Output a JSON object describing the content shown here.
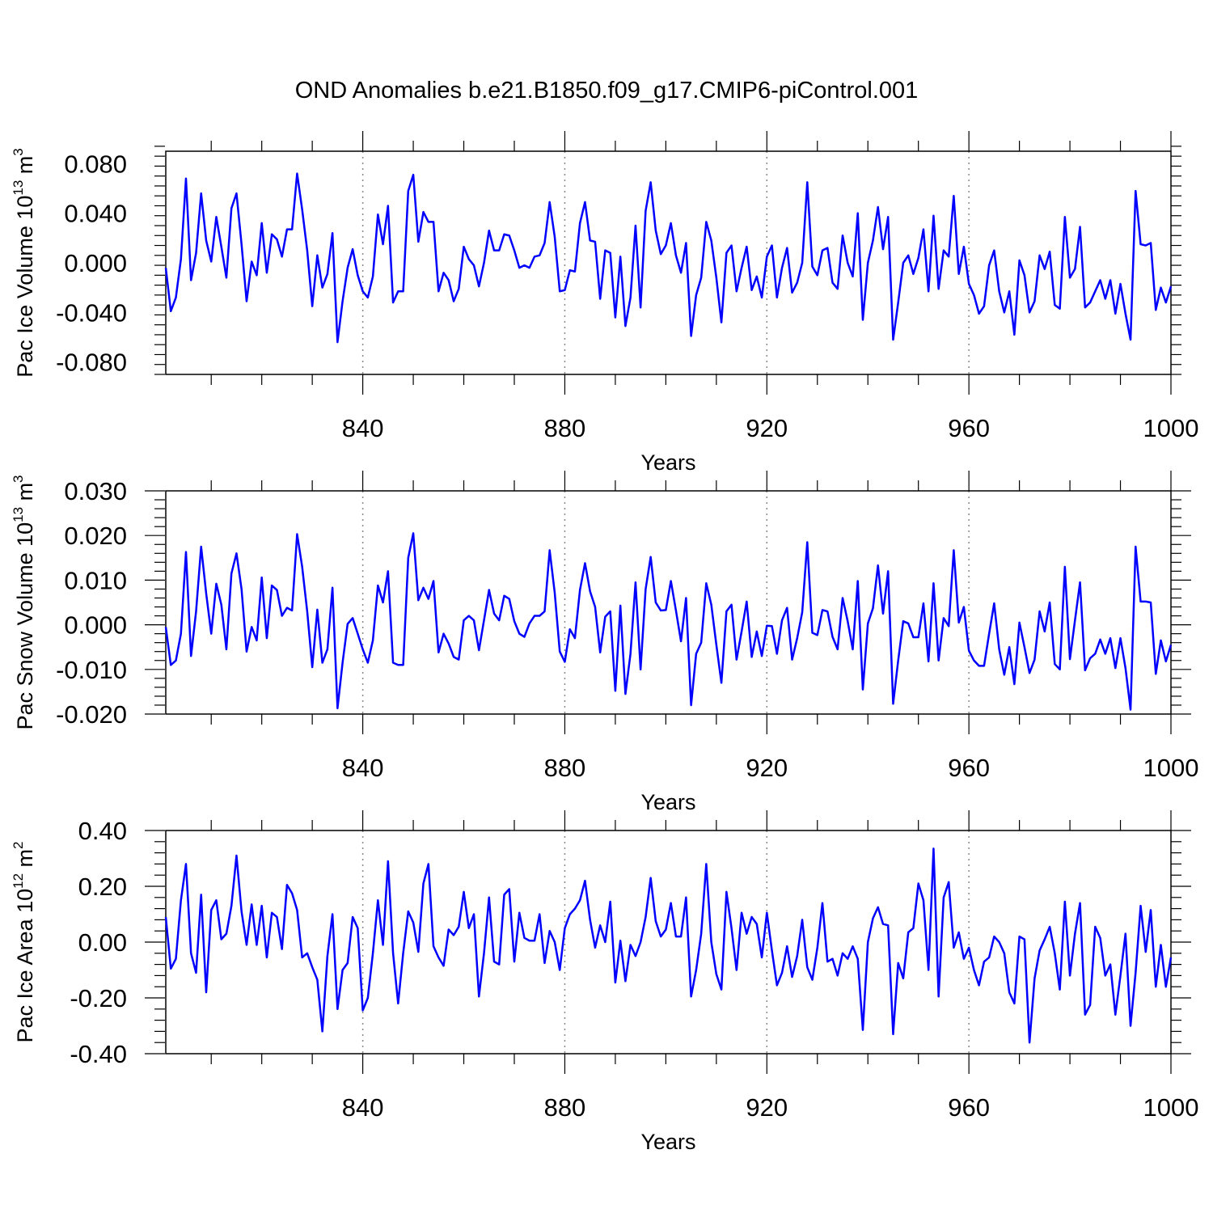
{
  "title": "OND Anomalies b.e21.B1850.f09_g17.CMIP6-piControl.001",
  "colors": {
    "series": "#0000ff",
    "axis": "#000000",
    "grid": "#888888"
  },
  "chart_data": [
    {
      "type": "line",
      "name": "pac-ice-volume",
      "title": "",
      "xlabel": "Years",
      "ylabel": {
        "prefix": "Pac Ice Volume 10",
        "exp": "13",
        "unit": " m",
        "unit_exp": "3"
      },
      "xlim": [
        801,
        1000
      ],
      "ylim": [
        -0.09,
        0.09
      ],
      "xticks": [
        840,
        880,
        920,
        960,
        1000
      ],
      "xtick_labels": [
        "840",
        "880",
        "920",
        "960",
        "1000"
      ],
      "yticks": [
        -0.08,
        -0.04,
        0.0,
        0.04,
        0.08
      ],
      "ytick_labels": [
        "-0.080",
        "-0.040",
        "0.000",
        "0.040",
        "0.080"
      ],
      "grid_x": [
        840,
        880,
        920,
        960
      ],
      "x_start": 801,
      "values": [
        -0.004,
        -0.039,
        -0.028,
        0.003,
        0.068,
        -0.014,
        0.008,
        0.056,
        0.018,
        0.001,
        0.037,
        0.013,
        -0.012,
        0.044,
        0.056,
        0.015,
        -0.031,
        0.001,
        -0.01,
        0.032,
        -0.008,
        0.023,
        0.019,
        0.005,
        0.027,
        0.027,
        0.072,
        0.043,
        0.01,
        -0.035,
        0.006,
        -0.02,
        -0.009,
        0.024,
        -0.064,
        -0.031,
        -0.004,
        0.011,
        -0.01,
        -0.023,
        -0.028,
        -0.011,
        0.039,
        0.015,
        0.046,
        -0.032,
        -0.023,
        -0.023,
        0.058,
        0.071,
        0.017,
        0.041,
        0.033,
        0.033,
        -0.023,
        -0.008,
        -0.014,
        -0.031,
        -0.021,
        0.013,
        0.003,
        -0.002,
        -0.019,
        0.0,
        0.026,
        0.01,
        0.01,
        0.023,
        0.022,
        0.01,
        -0.004,
        -0.002,
        -0.004,
        0.005,
        0.006,
        0.016,
        0.049,
        0.021,
        -0.023,
        -0.022,
        -0.006,
        -0.007,
        0.032,
        0.049,
        0.018,
        0.017,
        -0.029,
        0.01,
        0.008,
        -0.044,
        0.005,
        -0.051,
        -0.028,
        0.03,
        -0.036,
        0.042,
        0.065,
        0.026,
        0.007,
        0.014,
        0.032,
        0.006,
        -0.008,
        0.016,
        -0.059,
        -0.026,
        -0.012,
        0.033,
        0.018,
        -0.012,
        -0.048,
        0.008,
        0.014,
        -0.023,
        -0.004,
        0.013,
        -0.022,
        -0.011,
        -0.028,
        0.005,
        0.014,
        -0.028,
        -0.004,
        0.012,
        -0.024,
        -0.016,
        0.0,
        0.065,
        -0.003,
        -0.01,
        0.01,
        0.012,
        -0.016,
        -0.021,
        0.022,
        0.0,
        -0.011,
        0.04,
        -0.046,
        0.0,
        0.018,
        0.045,
        0.011,
        0.037,
        -0.062,
        -0.032,
        0.0,
        0.006,
        -0.009,
        0.004,
        0.027,
        -0.023,
        0.038,
        -0.021,
        0.01,
        0.005,
        0.054,
        -0.009,
        0.013,
        -0.017,
        -0.026,
        -0.041,
        -0.035,
        -0.002,
        0.01,
        -0.023,
        -0.04,
        -0.023,
        -0.058,
        0.002,
        -0.01,
        -0.04,
        -0.031,
        0.006,
        -0.005,
        0.009,
        -0.034,
        -0.037,
        0.037,
        -0.012,
        -0.005,
        0.029,
        -0.036,
        -0.032,
        -0.023,
        -0.014,
        -0.029,
        -0.014,
        -0.041,
        -0.017,
        -0.041,
        -0.062,
        0.058,
        0.015,
        0.014,
        0.016,
        -0.038,
        -0.02,
        -0.032,
        -0.019
      ]
    },
    {
      "type": "line",
      "name": "pac-snow-volume",
      "title": "",
      "xlabel": "Years",
      "ylabel": {
        "prefix": "Pac Snow Volume 10",
        "exp": "13",
        "unit": " m",
        "unit_exp": "3"
      },
      "xlim": [
        801,
        1000
      ],
      "ylim": [
        -0.02,
        0.03
      ],
      "xticks": [
        840,
        880,
        920,
        960,
        1000
      ],
      "xtick_labels": [
        "840",
        "880",
        "920",
        "960",
        "1000"
      ],
      "yticks": [
        -0.02,
        -0.01,
        0.0,
        0.01,
        0.02,
        0.03
      ],
      "ytick_labels": [
        "-0.020",
        "-0.010",
        "0.000",
        "0.010",
        "0.020",
        "0.030"
      ],
      "grid_x": [
        840,
        880,
        920,
        960
      ],
      "x_start": 801,
      "values": [
        -0.0005,
        -0.009,
        -0.008,
        -0.002,
        0.0163,
        -0.007,
        0.003,
        0.0175,
        0.007,
        -0.002,
        0.0092,
        0.0045,
        -0.0055,
        0.0115,
        0.016,
        0.008,
        -0.006,
        -0.0005,
        -0.0035,
        0.0106,
        -0.003,
        0.0088,
        0.0078,
        0.002,
        0.0038,
        0.0032,
        0.0203,
        0.013,
        0.003,
        -0.0095,
        0.0034,
        -0.0085,
        -0.0055,
        0.0083,
        -0.0187,
        -0.0085,
        0.0002,
        0.0015,
        -0.002,
        -0.0055,
        -0.0085,
        -0.0035,
        0.0088,
        0.005,
        0.012,
        -0.0085,
        -0.009,
        -0.009,
        0.015,
        0.0205,
        0.0055,
        0.0083,
        0.0058,
        0.0098,
        -0.0062,
        -0.002,
        -0.0042,
        -0.0072,
        -0.0078,
        0.001,
        0.002,
        0.001,
        -0.0057,
        0.001,
        0.0078,
        0.0025,
        0.001,
        0.0065,
        0.0058,
        0.0008,
        -0.002,
        -0.0027,
        0.0003,
        0.002,
        0.002,
        0.003,
        0.0167,
        0.0072,
        -0.006,
        -0.0083,
        -0.001,
        -0.003,
        0.0078,
        0.0138,
        0.0075,
        0.004,
        -0.0062,
        0.0018,
        0.003,
        -0.0148,
        0.0043,
        -0.0155,
        -0.0065,
        0.0095,
        -0.01,
        0.008,
        0.0152,
        0.005,
        0.0032,
        0.0033,
        0.0098,
        0.0032,
        -0.0037,
        0.006,
        -0.018,
        -0.0065,
        -0.004,
        0.0093,
        0.0045,
        -0.0045,
        -0.013,
        0.003,
        0.0045,
        -0.0078,
        -0.0015,
        0.0052,
        -0.0072,
        -0.0015,
        -0.007,
        -0.0002,
        -0.0003,
        -0.0065,
        0.001,
        0.0038,
        -0.0078,
        -0.003,
        0.0028,
        0.0185,
        -0.0018,
        -0.0023,
        0.0033,
        0.003,
        -0.0027,
        -0.0055,
        0.006,
        0.0008,
        -0.0055,
        0.0098,
        -0.0145,
        0.0003,
        0.0037,
        0.0133,
        0.0025,
        0.012,
        -0.0177,
        -0.008,
        0.0008,
        0.0003,
        -0.0028,
        -0.0028,
        0.0048,
        -0.0082,
        0.0093,
        -0.008,
        0.0015,
        -0.0003,
        0.0167,
        0.0005,
        0.004,
        -0.0058,
        -0.008,
        -0.0092,
        -0.0092,
        -0.002,
        0.0048,
        -0.0055,
        -0.0112,
        -0.005,
        -0.0133,
        0.0005,
        -0.005,
        -0.0108,
        -0.0078,
        0.003,
        -0.0015,
        0.005,
        -0.0088,
        -0.01,
        0.013,
        -0.0077,
        0.001,
        0.0095,
        -0.0102,
        -0.0075,
        -0.0065,
        -0.0033,
        -0.0065,
        -0.003,
        -0.0097,
        -0.003,
        -0.0097,
        -0.019,
        0.0175,
        0.0052,
        0.0052,
        0.005,
        -0.011,
        -0.0035,
        -0.0082,
        -0.0045
      ]
    },
    {
      "type": "line",
      "name": "pac-ice-area",
      "title": "",
      "xlabel": "Years",
      "ylabel": {
        "prefix": "Pac Ice Area 10",
        "exp": "12",
        "unit": " m",
        "unit_exp": "2"
      },
      "xlim": [
        801,
        1000
      ],
      "ylim": [
        -0.4,
        0.4
      ],
      "xticks": [
        840,
        880,
        920,
        960,
        1000
      ],
      "xtick_labels": [
        "840",
        "880",
        "920",
        "960",
        "1000"
      ],
      "yticks": [
        -0.4,
        -0.2,
        0.0,
        0.2,
        0.4
      ],
      "ytick_labels": [
        "-0.40",
        "-0.20",
        "0.00",
        "0.20",
        "0.40"
      ],
      "grid_x": [
        840,
        880,
        920,
        960
      ],
      "x_start": 801,
      "values": [
        0.09,
        -0.095,
        -0.06,
        0.15,
        0.28,
        -0.04,
        -0.11,
        0.17,
        -0.18,
        0.115,
        0.15,
        0.01,
        0.03,
        0.13,
        0.31,
        0.11,
        -0.01,
        0.135,
        -0.01,
        0.13,
        -0.055,
        0.105,
        0.09,
        -0.025,
        0.205,
        0.175,
        0.115,
        -0.055,
        -0.04,
        -0.09,
        -0.135,
        -0.32,
        -0.05,
        0.1,
        -0.24,
        -0.1,
        -0.075,
        0.09,
        0.05,
        -0.245,
        -0.2,
        -0.04,
        0.15,
        -0.01,
        0.29,
        -0.04,
        -0.22,
        -0.04,
        0.11,
        0.07,
        -0.035,
        0.21,
        0.28,
        -0.015,
        -0.055,
        -0.085,
        0.045,
        0.025,
        0.055,
        0.18,
        0.05,
        0.1,
        -0.195,
        -0.04,
        0.16,
        -0.07,
        -0.08,
        0.17,
        0.19,
        -0.07,
        0.105,
        0.015,
        0.005,
        0.005,
        0.1,
        -0.075,
        0.04,
        0.0,
        -0.1,
        0.05,
        0.1,
        0.12,
        0.15,
        0.22,
        0.08,
        -0.02,
        0.06,
        0.0,
        0.145,
        -0.145,
        0.005,
        -0.14,
        -0.01,
        -0.05,
        0.0,
        0.09,
        0.23,
        0.075,
        0.02,
        0.045,
        0.14,
        0.02,
        0.02,
        0.16,
        -0.195,
        -0.1,
        0.03,
        0.28,
        0.0,
        -0.115,
        -0.17,
        0.18,
        0.05,
        -0.1,
        0.105,
        0.03,
        0.09,
        0.065,
        -0.055,
        0.105,
        -0.03,
        -0.155,
        -0.11,
        -0.015,
        -0.125,
        -0.05,
        0.08,
        -0.09,
        -0.135,
        -0.02,
        0.14,
        -0.07,
        -0.06,
        -0.12,
        -0.04,
        -0.06,
        -0.015,
        -0.06,
        -0.315,
        0.0,
        0.085,
        0.125,
        0.065,
        0.06,
        -0.33,
        -0.075,
        -0.13,
        0.035,
        0.05,
        0.21,
        0.15,
        -0.1,
        0.335,
        -0.195,
        0.16,
        0.215,
        -0.02,
        0.035,
        -0.06,
        -0.02,
        -0.1,
        -0.155,
        -0.07,
        -0.055,
        0.02,
        0.0,
        -0.04,
        -0.18,
        -0.22,
        0.02,
        0.01,
        -0.36,
        -0.13,
        -0.03,
        0.01,
        0.055,
        -0.04,
        -0.17,
        0.145,
        -0.12,
        0.03,
        0.14,
        -0.26,
        -0.225,
        0.055,
        0.015,
        -0.12,
        -0.08,
        -0.26,
        -0.12,
        0.03,
        -0.3,
        -0.11,
        0.13,
        -0.035,
        0.115,
        -0.16,
        -0.01,
        -0.16,
        -0.055
      ]
    }
  ]
}
